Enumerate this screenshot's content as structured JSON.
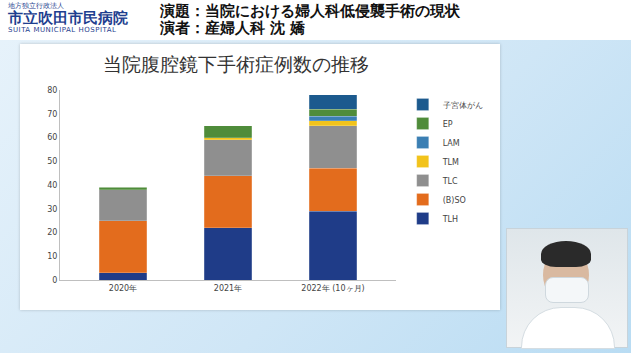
{
  "header": {
    "org_small": "地方独立行政法人",
    "org": "市立吹田市民病院",
    "org_en": "SUITA MUNICIPAL HOSPITAL",
    "title": "演題：当院における婦人科低侵襲手術の現状",
    "speaker": "演者：産婦人科 沈 嬌"
  },
  "chart_data": {
    "type": "bar",
    "title": "当院腹腔鏡下手術症例数の推移",
    "categories": [
      "2020年",
      "2021年",
      "2022年 (10ヶ月)"
    ],
    "stacked": true,
    "series": [
      {
        "name": "TLH",
        "color": "#1f3c88",
        "values": [
          3,
          22,
          29
        ]
      },
      {
        "name": "(B)SO",
        "color": "#e36c1d",
        "values": [
          22,
          22,
          18
        ]
      },
      {
        "name": "TLC",
        "color": "#8f8f8f",
        "values": [
          13,
          15,
          18
        ]
      },
      {
        "name": "TLM",
        "color": "#f2c31b",
        "values": [
          0,
          1,
          2
        ]
      },
      {
        "name": "LAM",
        "color": "#3b7fb3",
        "values": [
          0,
          0,
          2
        ]
      },
      {
        "name": "EP",
        "color": "#4f8c3a",
        "values": [
          1,
          5,
          3
        ]
      },
      {
        "name": "子宮体がん",
        "color": "#1c5a8e",
        "values": [
          0,
          0,
          6
        ]
      }
    ],
    "ylim": [
      0,
      80
    ],
    "yticks": [
      0,
      10,
      20,
      30,
      40,
      50,
      60,
      70,
      80
    ],
    "grid": false,
    "legend": "top-right"
  }
}
